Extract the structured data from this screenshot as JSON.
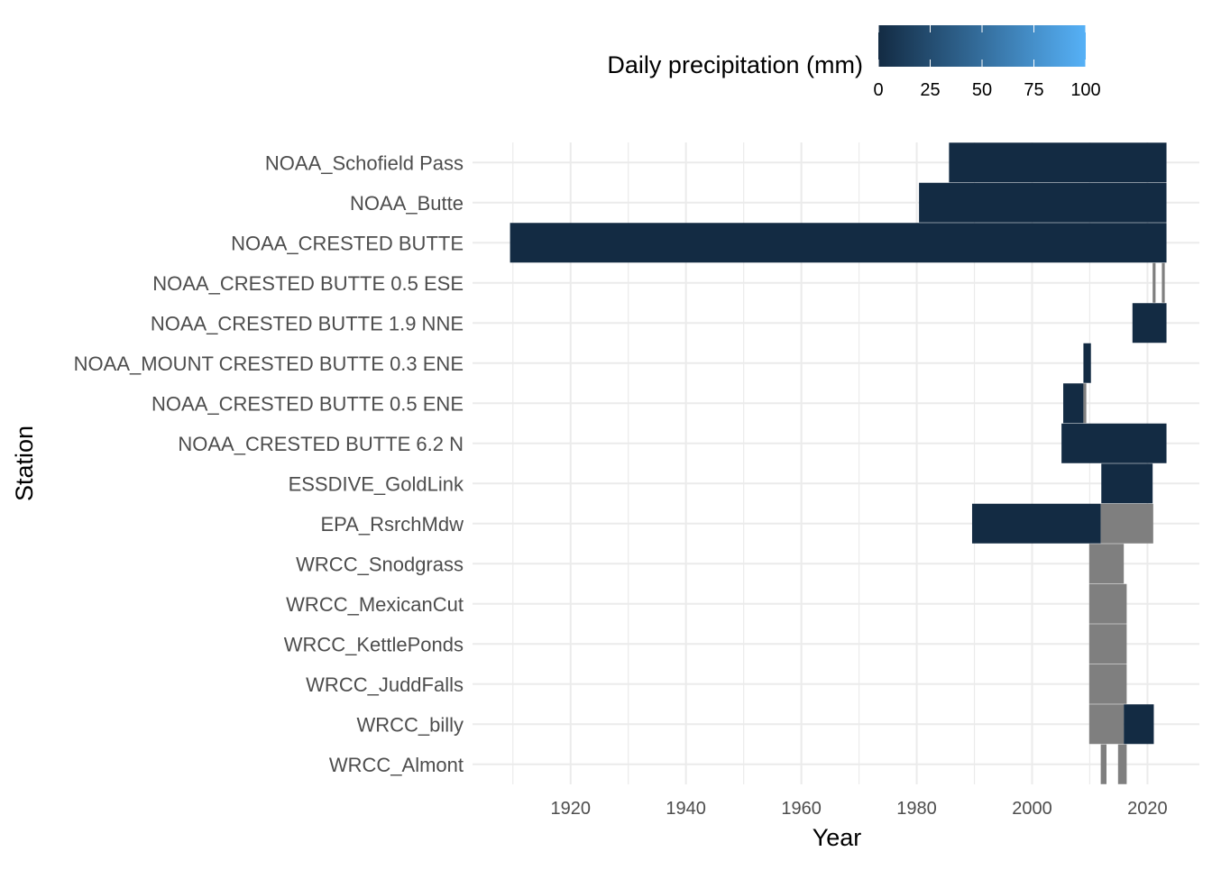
{
  "chart_data": {
    "type": "heatmap",
    "xlabel": "Year",
    "ylabel": "Station",
    "xlim": [
      1903,
      2029
    ],
    "x_ticks": [
      1920,
      1940,
      1960,
      1980,
      2000,
      2020
    ],
    "grid": "on",
    "legend": {
      "title": "Daily precipitation (mm)",
      "position": "top",
      "ticks": [
        0,
        25,
        50,
        75,
        100
      ],
      "range": [
        0,
        100
      ],
      "color_low": "#132B43",
      "color_high": "#56B1F7",
      "missing_color": "#7f7f7f"
    },
    "stations": [
      {
        "name": "NOAA_Schofield Pass",
        "coverage": [
          {
            "start": 1985.6,
            "end": 2023.3,
            "status": "data"
          }
        ]
      },
      {
        "name": "NOAA_Butte",
        "coverage": [
          {
            "start": 1980.4,
            "end": 2023.3,
            "status": "data"
          }
        ]
      },
      {
        "name": "NOAA_CRESTED BUTTE",
        "coverage": [
          {
            "start": 1909.5,
            "end": 2023.3,
            "status": "data"
          }
        ]
      },
      {
        "name": "NOAA_CRESTED BUTTE 0.5 ESE",
        "coverage": [
          {
            "start": 2020.9,
            "end": 2021.4,
            "status": "missing"
          },
          {
            "start": 2022.5,
            "end": 2023.0,
            "status": "missing"
          }
        ]
      },
      {
        "name": "NOAA_CRESTED BUTTE 1.9 NNE",
        "coverage": [
          {
            "start": 2017.4,
            "end": 2023.3,
            "status": "data"
          }
        ]
      },
      {
        "name": "NOAA_MOUNT CRESTED BUTTE 0.3 ENE",
        "coverage": [
          {
            "start": 2008.9,
            "end": 2010.2,
            "status": "data"
          }
        ]
      },
      {
        "name": "NOAA_CRESTED BUTTE 0.5 ENE",
        "coverage": [
          {
            "start": 2005.4,
            "end": 2008.9,
            "status": "data"
          },
          {
            "start": 2008.9,
            "end": 2009.4,
            "status": "missing"
          }
        ]
      },
      {
        "name": "NOAA_CRESTED BUTTE 6.2 N",
        "coverage": [
          {
            "start": 2005.1,
            "end": 2023.3,
            "status": "data"
          }
        ]
      },
      {
        "name": "ESSDIVE_GoldLink",
        "coverage": [
          {
            "start": 2012.0,
            "end": 2020.9,
            "status": "data"
          }
        ]
      },
      {
        "name": "EPA_RsrchMdw",
        "coverage": [
          {
            "start": 1989.6,
            "end": 2011.9,
            "status": "data"
          },
          {
            "start": 2011.9,
            "end": 2021.0,
            "status": "missing"
          }
        ]
      },
      {
        "name": "WRCC_Snodgrass",
        "coverage": [
          {
            "start": 2009.9,
            "end": 2015.9,
            "status": "missing"
          }
        ]
      },
      {
        "name": "WRCC_MexicanCut",
        "coverage": [
          {
            "start": 2009.9,
            "end": 2016.4,
            "status": "missing"
          }
        ]
      },
      {
        "name": "WRCC_KettlePonds",
        "coverage": [
          {
            "start": 2009.9,
            "end": 2016.4,
            "status": "missing"
          }
        ]
      },
      {
        "name": "WRCC_JuddFalls",
        "coverage": [
          {
            "start": 2009.9,
            "end": 2016.4,
            "status": "missing"
          }
        ]
      },
      {
        "name": "WRCC_billy",
        "coverage": [
          {
            "start": 2009.9,
            "end": 2015.9,
            "status": "missing"
          },
          {
            "start": 2015.9,
            "end": 2021.1,
            "status": "data"
          }
        ]
      },
      {
        "name": "WRCC_Almont",
        "coverage": [
          {
            "start": 2011.9,
            "end": 2012.9,
            "status": "missing"
          },
          {
            "start": 2014.9,
            "end": 2016.4,
            "status": "missing"
          }
        ]
      }
    ]
  }
}
